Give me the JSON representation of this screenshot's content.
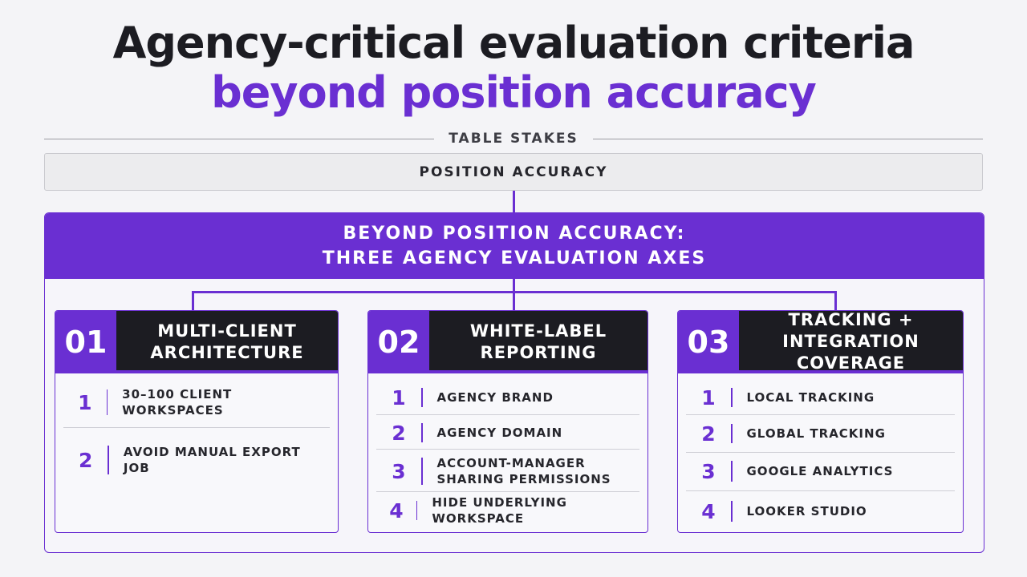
{
  "title": {
    "line1": "Agency-critical evaluation criteria",
    "line2": "beyond position accuracy"
  },
  "table_stakes": {
    "label": "TABLE STAKES",
    "box": "POSITION ACCURACY"
  },
  "axes_header": {
    "line1": "BEYOND POSITION ACCURACY:",
    "line2": "THREE AGENCY EVALUATION AXES"
  },
  "cards": [
    {
      "number": "01",
      "title_line1": "MULTI-CLIENT",
      "title_line2": "ARCHITECTURE",
      "items": [
        {
          "num": "1",
          "line1": "30–100 CLIENT WORKSPACES"
        },
        {
          "num": "2",
          "line1": "AVOID MANUAL EXPORT JOB"
        }
      ]
    },
    {
      "number": "02",
      "title_line1": "WHITE-LABEL",
      "title_line2": "REPORTING",
      "items": [
        {
          "num": "1",
          "line1": "AGENCY BRAND"
        },
        {
          "num": "2",
          "line1": "AGENCY DOMAIN"
        },
        {
          "num": "3",
          "line1": "ACCOUNT-MANAGER",
          "line2": "SHARING PERMISSIONS"
        },
        {
          "num": "4",
          "line1": "HIDE UNDERLYING WORKSPACE"
        }
      ]
    },
    {
      "number": "03",
      "title_line1": "TRACKING +",
      "title_line2": "INTEGRATION COVERAGE",
      "items": [
        {
          "num": "1",
          "line1": "LOCAL TRACKING"
        },
        {
          "num": "2",
          "line1": "GLOBAL TRACKING"
        },
        {
          "num": "3",
          "line1": "GOOGLE ANALYTICS"
        },
        {
          "num": "4",
          "line1": "LOOKER STUDIO"
        }
      ]
    }
  ],
  "colors": {
    "accent": "#6a2fd2",
    "dark": "#1c1c22",
    "background": "#f4f4f7"
  }
}
